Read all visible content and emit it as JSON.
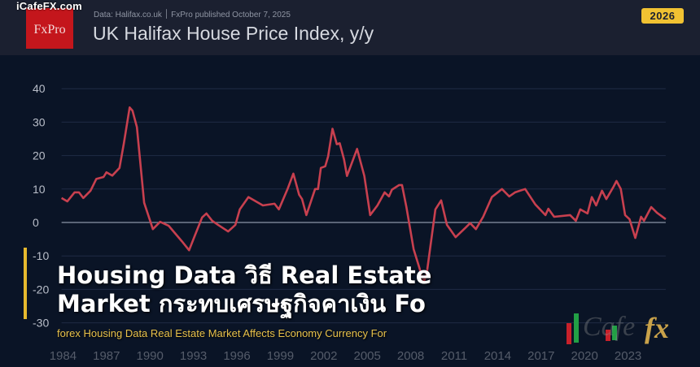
{
  "header": {
    "site_watermark": "iCafeFX.com",
    "logo_text": "FxPro",
    "source": "Data: Halifax.co.uk  ׀  FxPro published October 7, 2025",
    "title": "UK Halifax House Price Index, y/y",
    "year_badge": "2026"
  },
  "overlay": {
    "title_line1": "Housing Data วิธี Real Estate",
    "title_line2": "Market กระทบเศรษฐกิจคาเงิน Fo",
    "subtitle": "forex Housing Data Real Estate Market Affects Economy Currency For",
    "watermark": "iCafeFX",
    "accent_color": "#e6b92e"
  },
  "chart_data": {
    "type": "line",
    "title": "UK Halifax House Price Index, y/y",
    "xlabel": "",
    "ylabel": "",
    "ylim": [
      -30,
      40
    ],
    "xlim": [
      1983.9,
      2025.6
    ],
    "grid": true,
    "line_color": "#c8404f",
    "yticks": [
      "40",
      "30",
      "20",
      "10",
      "0",
      "-10",
      "-20",
      "-30"
    ],
    "xticks": [
      "1984",
      "1987",
      "1990",
      "1993",
      "1996",
      "1999",
      "2002",
      "2005",
      "2008",
      "2011",
      "2014",
      "2017",
      "2020",
      "2023"
    ],
    "x": [
      1983.9,
      1984.3,
      1984.8,
      1985.1,
      1985.4,
      1985.9,
      1986.3,
      1986.8,
      1987.0,
      1987.4,
      1987.9,
      1988.2,
      1988.6,
      1988.8,
      1989.1,
      1989.6,
      1990.2,
      1990.7,
      1991.3,
      1992.2,
      1992.7,
      1993.1,
      1993.6,
      1993.9,
      1994.3,
      1994.7,
      1995.4,
      1995.9,
      1996.2,
      1996.8,
      1997.8,
      1998.6,
      1998.9,
      1999.5,
      1999.9,
      2000.3,
      2000.5,
      2000.8,
      2001.4,
      2001.6,
      2001.8,
      2002.1,
      2002.3,
      2002.6,
      2002.9,
      2003.1,
      2003.4,
      2003.6,
      2004.3,
      2004.8,
      2005.2,
      2005.7,
      2006.2,
      2006.5,
      2006.7,
      2007.2,
      2007.4,
      2007.7,
      2008.2,
      2008.9,
      2009.1,
      2009.7,
      2010.1,
      2010.5,
      2011.1,
      2011.8,
      2012.1,
      2012.5,
      2013.0,
      2013.6,
      2014.3,
      2014.8,
      2015.2,
      2015.9,
      2016.6,
      2017.3,
      2017.5,
      2017.9,
      2019.0,
      2019.4,
      2019.7,
      2020.2,
      2020.5,
      2020.8,
      2021.2,
      2021.5,
      2022.0,
      2022.2,
      2022.5,
      2022.8,
      2023.1,
      2023.5,
      2023.9,
      2024.1,
      2024.6,
      2025.0,
      2025.6
    ],
    "y": [
      7.3,
      6.3,
      9.0,
      9.0,
      7.3,
      9.5,
      13.0,
      13.6,
      15.0,
      14.0,
      16.3,
      23.7,
      34.4,
      33.4,
      28.5,
      5.9,
      -2.0,
      0.2,
      -1.0,
      -5.6,
      -8.3,
      -3.9,
      1.5,
      2.7,
      0.5,
      -0.7,
      -2.7,
      -0.7,
      3.9,
      7.6,
      5.1,
      5.6,
      3.9,
      10.0,
      14.6,
      8.3,
      7.0,
      2.2,
      10.0,
      10.0,
      16.3,
      16.8,
      19.7,
      28.0,
      23.4,
      23.7,
      18.8,
      13.9,
      22.0,
      13.9,
      2.2,
      5.1,
      9.0,
      7.8,
      9.8,
      11.2,
      11.2,
      4.6,
      -8.0,
      -17.8,
      -15.4,
      3.9,
      6.6,
      -0.7,
      -4.4,
      -1.5,
      -0.2,
      -2.0,
      1.7,
      7.6,
      10.0,
      7.8,
      9.0,
      10.0,
      5.4,
      2.2,
      4.1,
      1.7,
      2.2,
      0.5,
      3.9,
      2.7,
      7.6,
      5.1,
      9.5,
      7.0,
      10.7,
      12.4,
      10.0,
      2.2,
      1.0,
      -4.6,
      1.7,
      0.5,
      4.6,
      2.9,
      1.0
    ]
  }
}
